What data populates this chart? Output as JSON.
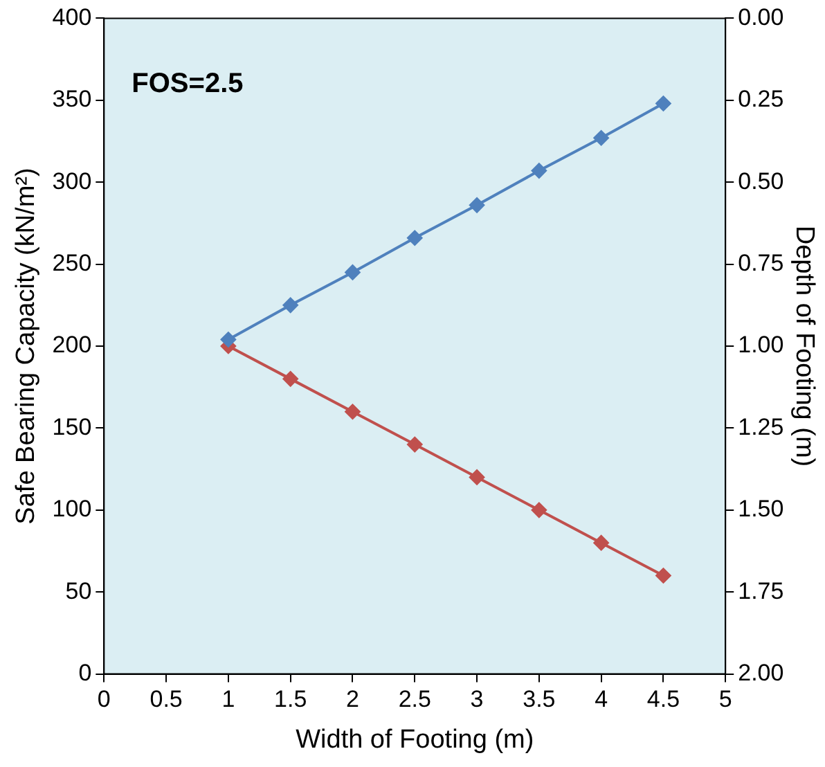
{
  "chart_data": {
    "type": "line",
    "xlabel": "Width of Footing (m)",
    "ylabel": "Safe Bearing Capacity (kN/m²)",
    "y2label": "Depth of Footing (m)",
    "annotations": [
      "FOS=2.5"
    ],
    "xlim": [
      0,
      5
    ],
    "xticks": [
      0,
      0.5,
      1,
      1.5,
      2,
      2.5,
      3,
      3.5,
      4,
      4.5,
      5
    ],
    "ylim": [
      0,
      400
    ],
    "yticks": [
      0,
      50,
      100,
      150,
      200,
      250,
      300,
      350,
      400
    ],
    "y2lim": [
      2,
      0
    ],
    "y2ticks": [
      {
        "value": 0,
        "label": "0.00"
      },
      {
        "value": 0.25,
        "label": "0.25"
      },
      {
        "value": 0.5,
        "label": "0.50"
      },
      {
        "value": 0.75,
        "label": "0.75"
      },
      {
        "value": 1,
        "label": "1.00"
      },
      {
        "value": 1.25,
        "label": "1.25"
      },
      {
        "value": 1.5,
        "label": "1.50"
      },
      {
        "value": 1.75,
        "label": "1.75"
      },
      {
        "value": 2,
        "label": "2.00"
      }
    ],
    "x": [
      1,
      1.5,
      2,
      2.5,
      3,
      3.5,
      4,
      4.5
    ],
    "series": [
      {
        "color": "#4f81bd",
        "values": [
          204,
          225,
          245,
          266,
          286,
          307,
          327,
          348
        ]
      },
      {
        "color": "#c0504d",
        "axis": "y2",
        "values": [
          1.0,
          1.1,
          1.2,
          1.3,
          1.4,
          1.5,
          1.6,
          1.7
        ]
      }
    ],
    "marker": "diamond",
    "line_style": "solid",
    "grid": false,
    "legend": false
  }
}
